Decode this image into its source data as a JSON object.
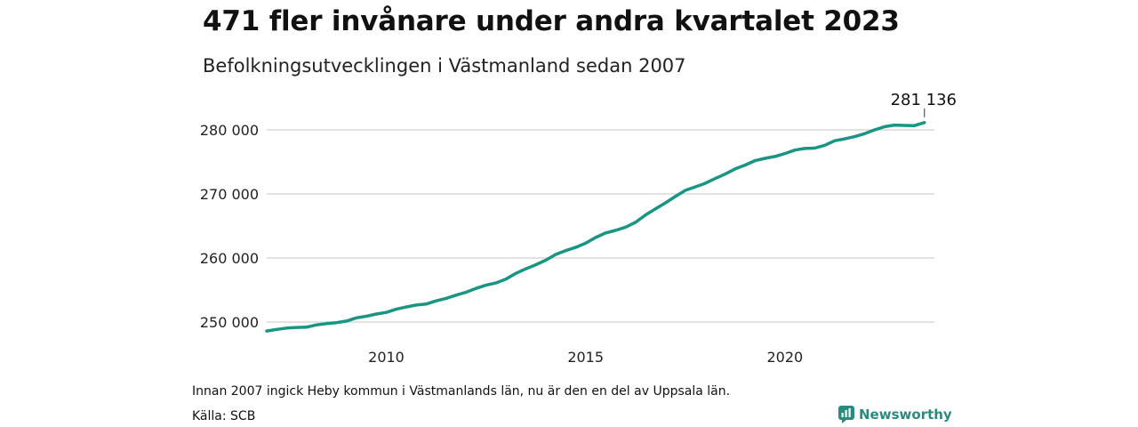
{
  "header": {
    "title": "471 fler invånare under andra kvartalet 2023",
    "subtitle": "Befolkningsutvecklingen i Västmanland sedan 2007"
  },
  "footer": {
    "note": "Innan 2007 ingick Heby kommun i Västmanlands län, nu är den en del av Uppsala län.",
    "source": "Källa: SCB",
    "brand": "Newsworthy",
    "brand_icon": "newsworthy-logo-icon"
  },
  "colors": {
    "line": "#1a9483",
    "grid": "#d9d9d9",
    "brand": "#2a8a7c"
  },
  "chart_data": {
    "type": "line",
    "title": "471 fler invånare under andra kvartalet 2023",
    "subtitle": "Befolkningsutvecklingen i Västmanland sedan 2007",
    "xlabel": "",
    "ylabel": "",
    "x_ticks": [
      2010,
      2015,
      2020
    ],
    "x_tick_labels": [
      "2010",
      "2015",
      "2020"
    ],
    "y_ticks": [
      250000,
      260000,
      270000,
      280000
    ],
    "y_tick_labels": [
      "250 000",
      "260 000",
      "270 000",
      "280 000"
    ],
    "xlim": [
      2007.0,
      2023.75
    ],
    "ylim": [
      247000,
      282000
    ],
    "grid": "horizontal",
    "legend": "none",
    "end_label": "281 136",
    "series": [
      {
        "x": [
          2007.0,
          2007.25,
          2007.5,
          2007.75,
          2008.0,
          2008.25,
          2008.5,
          2008.75,
          2009.0,
          2009.25,
          2009.5,
          2009.75,
          2010.0,
          2010.25,
          2010.5,
          2010.75,
          2011.0,
          2011.25,
          2011.5,
          2011.75,
          2012.0,
          2012.25,
          2012.5,
          2012.75,
          2013.0,
          2013.25,
          2013.5,
          2013.75,
          2014.0,
          2014.25,
          2014.5,
          2014.75,
          2015.0,
          2015.25,
          2015.5,
          2015.75,
          2016.0,
          2016.25,
          2016.5,
          2016.75,
          2017.0,
          2017.25,
          2017.5,
          2017.75,
          2018.0,
          2018.25,
          2018.5,
          2018.75,
          2019.0,
          2019.25,
          2019.5,
          2019.75,
          2020.0,
          2020.25,
          2020.5,
          2020.75,
          2021.0,
          2021.25,
          2021.5,
          2021.75,
          2022.0,
          2022.25,
          2022.5,
          2022.75,
          2023.0,
          2023.25,
          2023.5
        ],
        "values": [
          248600,
          248850,
          249050,
          249150,
          249200,
          249550,
          249750,
          249900,
          250150,
          250650,
          250900,
          251250,
          251500,
          252000,
          252350,
          252650,
          252800,
          253300,
          253700,
          254200,
          254650,
          255250,
          255750,
          256100,
          256700,
          257600,
          258300,
          258950,
          259650,
          260550,
          261150,
          261650,
          262300,
          263200,
          263900,
          264300,
          264800,
          265550,
          266700,
          267650,
          268600,
          269600,
          270550,
          271100,
          271650,
          272400,
          273100,
          273900,
          274500,
          275200,
          275550,
          275850,
          276300,
          276850,
          277100,
          277150,
          277600,
          278300,
          278600,
          278950,
          279400,
          280000,
          280500,
          280750,
          280700,
          280665,
          281136
        ]
      }
    ]
  }
}
